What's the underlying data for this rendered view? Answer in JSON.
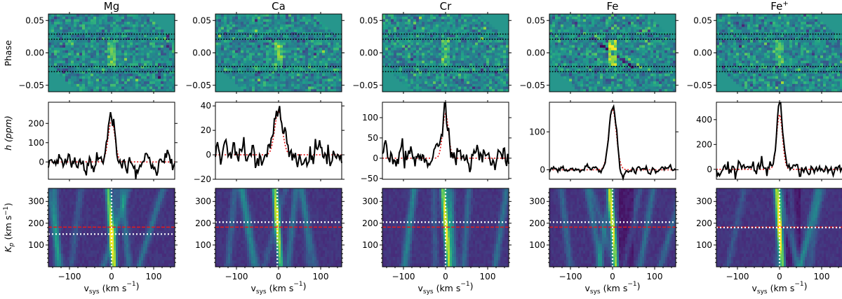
{
  "figure": {
    "row_labels": {
      "phase": "Phase",
      "h": "h (ppm)",
      "kp_main": "K",
      "kp_sub": "p",
      "kp_unit": " (km s",
      "kp_exp": "−1",
      "kp_close": ")"
    },
    "x_label": {
      "main": "v",
      "sub": "sys",
      "unit": " (km s",
      "exp": "−1",
      "close": ")"
    }
  },
  "chart_data": [
    {
      "species": "Mg",
      "title": "Mg",
      "title_sup": "",
      "phase_panel": {
        "type": "heatmap",
        "ylim": [
          -0.06,
          0.06
        ],
        "yticks": [
          -0.05,
          0,
          0.05
        ],
        "ytick_labels": [
          "−0.05",
          "0.00",
          "0.05"
        ],
        "dotted_phases": [
          0.029,
          0.021,
          -0.021,
          -0.029
        ]
      },
      "h_panel": {
        "type": "line",
        "ylim": [
          -90,
          310
        ],
        "yticks": [
          -100,
          0,
          100,
          200
        ],
        "ytick_labels": [
          "",
          "0",
          "100",
          "200"
        ],
        "peak": 260,
        "width": 8,
        "noise": 30,
        "gauss_fit_peak": 215
      },
      "kp_panel": {
        "type": "heatmap",
        "ylim": [
          0,
          360
        ],
        "yticks": [
          100,
          200,
          300
        ],
        "ytick_labels": [
          "100",
          "200",
          "300"
        ],
        "peak_vsys": 0,
        "peak_kp": 150,
        "red_line_kp": 182,
        "white_line_kp": 150
      },
      "xlim": [
        -150,
        150
      ],
      "xticks": [
        -100,
        0,
        100
      ],
      "xtick_labels": [
        "−100",
        "0",
        "100"
      ]
    },
    {
      "species": "Ca",
      "title": "Ca",
      "title_sup": "",
      "phase_panel": {
        "type": "heatmap",
        "ylim": [
          -0.06,
          0.06
        ],
        "yticks": [
          -0.05,
          0,
          0.05
        ],
        "ytick_labels": [
          "−0.05",
          "0.00",
          "0.05"
        ],
        "dotted_phases": [
          0.029,
          0.021,
          -0.021,
          -0.029
        ]
      },
      "h_panel": {
        "type": "line",
        "ylim": [
          -20,
          43
        ],
        "yticks": [
          -20,
          0,
          20,
          40
        ],
        "ytick_labels": [
          "−20",
          "0",
          "20",
          "40"
        ],
        "peak": 38,
        "width": 9,
        "noise": 5,
        "gauss_fit_peak": 36
      },
      "kp_panel": {
        "type": "heatmap",
        "ylim": [
          0,
          360
        ],
        "yticks": [
          100,
          200,
          300
        ],
        "ytick_labels": [
          "100",
          "200",
          "300"
        ],
        "peak_vsys": -3,
        "peak_kp": 205,
        "red_line_kp": 182,
        "white_line_kp": 205
      },
      "xlim": [
        -150,
        150
      ],
      "xticks": [
        -100,
        0,
        100
      ],
      "xtick_labels": [
        "−100",
        "0",
        "100"
      ]
    },
    {
      "species": "Cr",
      "title": "Cr",
      "title_sup": "",
      "phase_panel": {
        "type": "heatmap",
        "ylim": [
          -0.06,
          0.06
        ],
        "yticks": [
          -0.05,
          0,
          0.05
        ],
        "ytick_labels": [
          "−0.05",
          "0.00",
          "0.05"
        ],
        "dotted_phases": [
          0.029,
          0.021,
          -0.021,
          -0.029
        ]
      },
      "h_panel": {
        "type": "line",
        "ylim": [
          -52,
          138
        ],
        "yticks": [
          -50,
          0,
          50,
          100
        ],
        "ytick_labels": [
          "−50",
          "0",
          "50",
          "100"
        ],
        "peak": 128,
        "width": 7,
        "noise": 16,
        "gauss_fit_peak": 110
      },
      "kp_panel": {
        "type": "heatmap",
        "ylim": [
          0,
          360
        ],
        "yticks": [
          100,
          200,
          300
        ],
        "ytick_labels": [
          "100",
          "200",
          "300"
        ],
        "peak_vsys": 0,
        "peak_kp": 205,
        "red_line_kp": 182,
        "white_line_kp": 205
      },
      "xlim": [
        -150,
        150
      ],
      "xticks": [
        -100,
        0,
        100
      ],
      "xtick_labels": [
        "−100",
        "0",
        "100"
      ]
    },
    {
      "species": "Fe",
      "title": "Fe",
      "title_sup": "",
      "phase_panel": {
        "type": "heatmap",
        "ylim": [
          -0.06,
          0.06
        ],
        "yticks": [
          -0.05,
          0,
          0.05
        ],
        "ytick_labels": [
          "−0.05",
          "0.00",
          "0.05"
        ],
        "dotted_phases": [
          0.029,
          0.021,
          -0.021,
          -0.029
        ]
      },
      "h_panel": {
        "type": "line",
        "ylim": [
          -25,
          178
        ],
        "yticks": [
          0,
          100
        ],
        "ytick_labels": [
          "0",
          "100"
        ],
        "peak": 165,
        "width": 9,
        "noise": 5,
        "gauss_fit_peak": 160
      },
      "kp_panel": {
        "type": "heatmap",
        "ylim": [
          0,
          360
        ],
        "yticks": [
          100,
          200,
          300
        ],
        "ytick_labels": [
          "100",
          "200",
          "300"
        ],
        "peak_vsys": 0,
        "peak_kp": 200,
        "red_line_kp": 182,
        "white_line_kp": 205
      },
      "xlim": [
        -150,
        150
      ],
      "xticks": [
        -100,
        0,
        100
      ],
      "xtick_labels": [
        "−100",
        "0",
        "100"
      ]
    },
    {
      "species": "Fe+",
      "title": "Fe",
      "title_sup": "+",
      "phase_panel": {
        "type": "heatmap",
        "ylim": [
          -0.06,
          0.06
        ],
        "yticks": [
          -0.05,
          0,
          0.05
        ],
        "ytick_labels": [
          "−0.05",
          "0.00",
          "0.05"
        ],
        "dotted_phases": [
          0.029,
          0.021,
          -0.021,
          -0.029
        ]
      },
      "h_panel": {
        "type": "line",
        "ylim": [
          -80,
          540
        ],
        "yticks": [
          0,
          200,
          400
        ],
        "ytick_labels": [
          "0",
          "200",
          "400"
        ],
        "peak": 520,
        "width": 7,
        "noise": 30,
        "gauss_fit_peak": 440
      },
      "kp_panel": {
        "type": "heatmap",
        "ylim": [
          0,
          360
        ],
        "yticks": [
          100,
          200,
          300
        ],
        "ytick_labels": [
          "100",
          "200",
          "300"
        ],
        "peak_vsys": 0,
        "peak_kp": 180,
        "red_line_kp": 182,
        "white_line_kp": 180
      },
      "xlim": [
        -150,
        150
      ],
      "xticks": [
        -100,
        0,
        100
      ],
      "xtick_labels": [
        "−100",
        "0",
        "100"
      ]
    }
  ]
}
